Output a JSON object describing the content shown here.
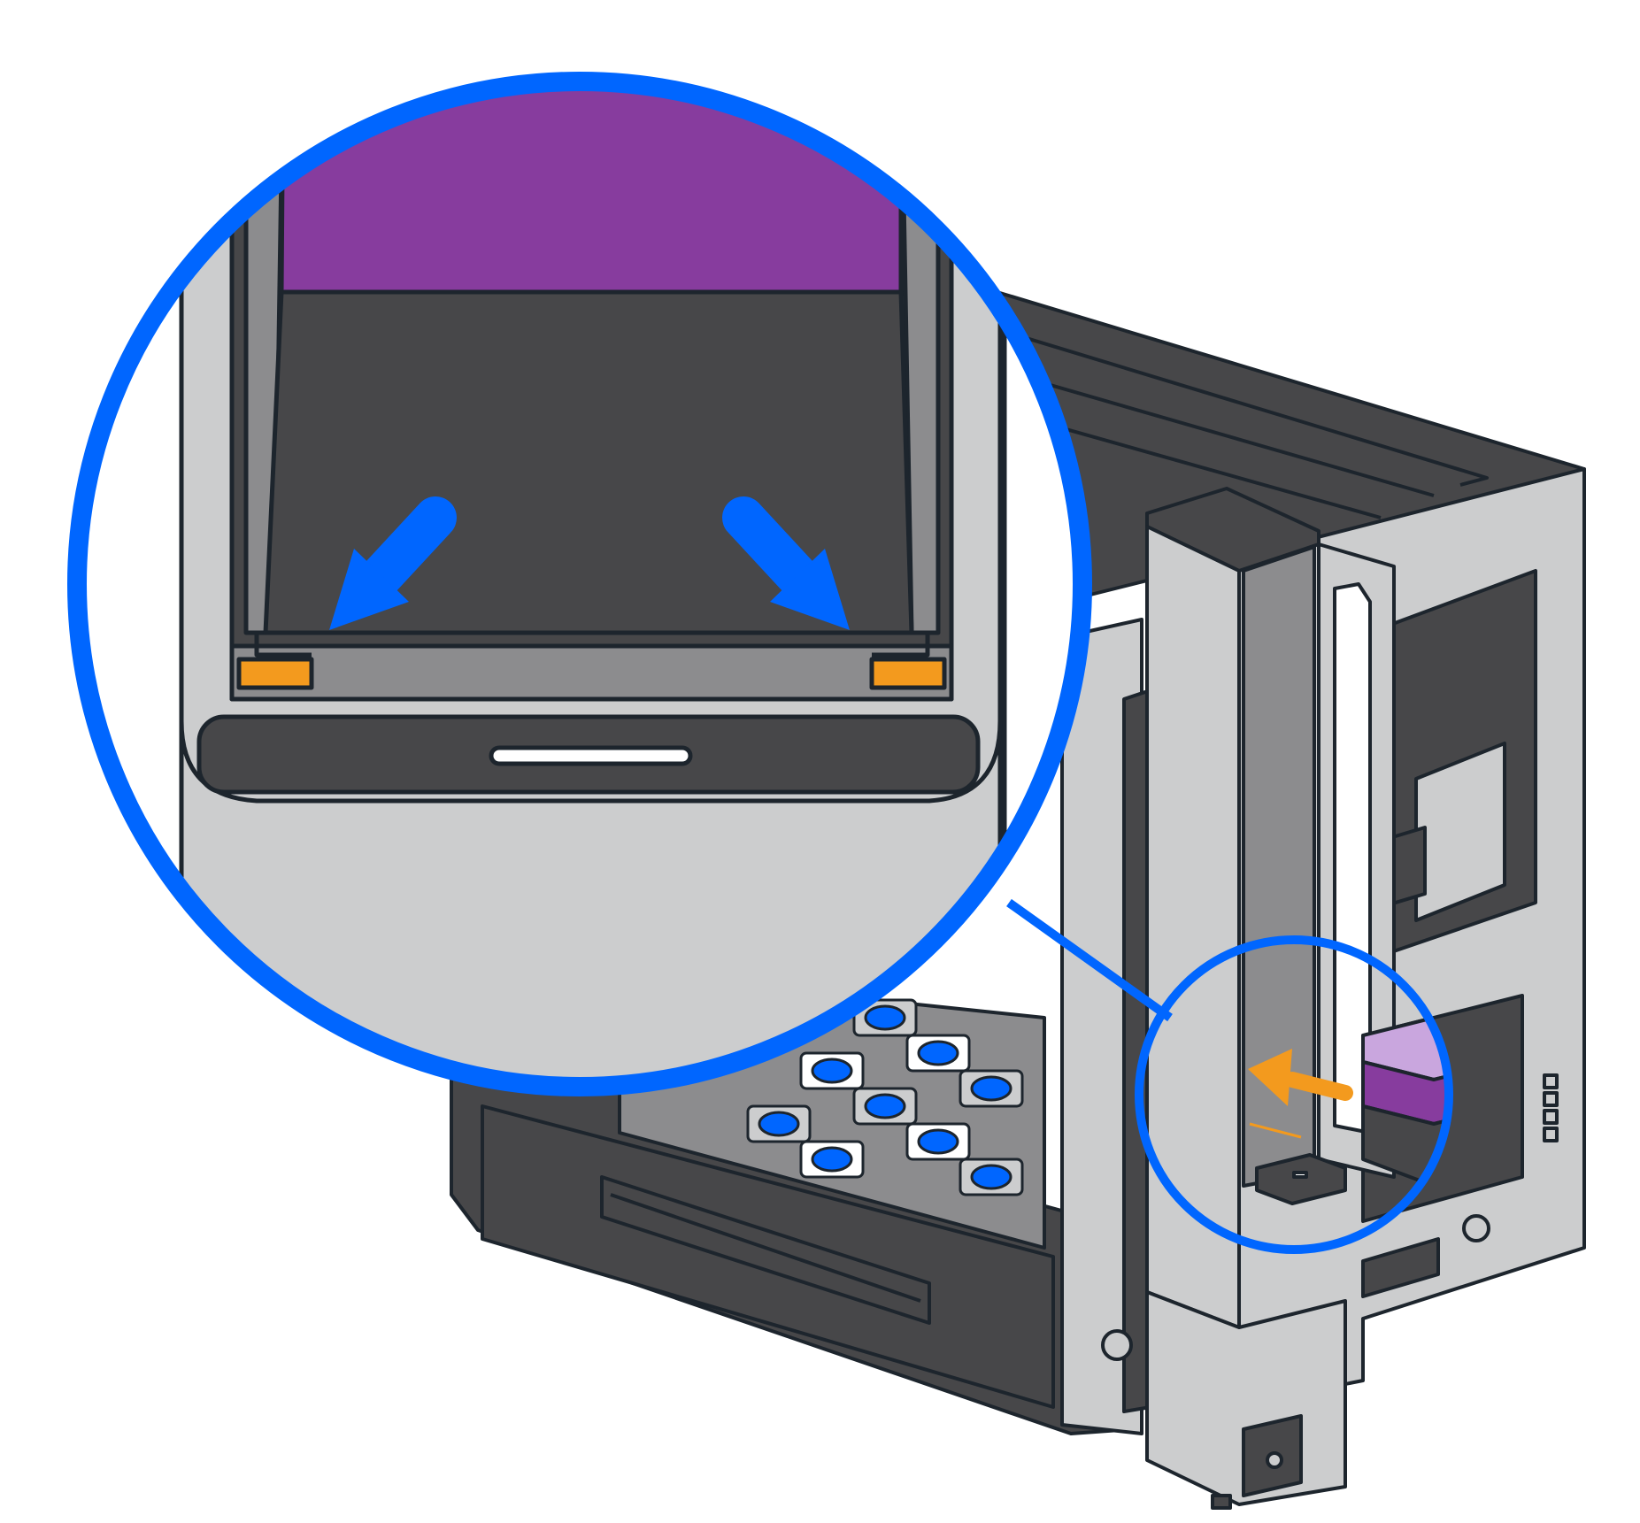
{
  "illustration": {
    "subject": "instrument-cartridge-insertion",
    "callout": {
      "shape": "circle",
      "shows": "cartridge-slot-alignment-tabs"
    },
    "arrows": [
      {
        "name": "left-alignment-arrow",
        "color": "#0066FF",
        "points_to": "left-orange-tab"
      },
      {
        "name": "right-alignment-arrow",
        "color": "#0066FF",
        "points_to": "right-orange-tab"
      },
      {
        "name": "insert-arrow",
        "color": "#F39A1E",
        "points_to": "cartridge-slot"
      }
    ]
  },
  "colors": {
    "callout_ring": "#0066FF",
    "instrument_dark": "#474749",
    "instrument_light": "#CCCDCE",
    "outline": "#1D252D",
    "cartridge_purple": "#873C9E",
    "cartridge_lavender": "#C9A6DE",
    "alignment_tab": "#F39A1E",
    "mid_gray": "#8C8C8E",
    "white": "#FFFFFF"
  }
}
